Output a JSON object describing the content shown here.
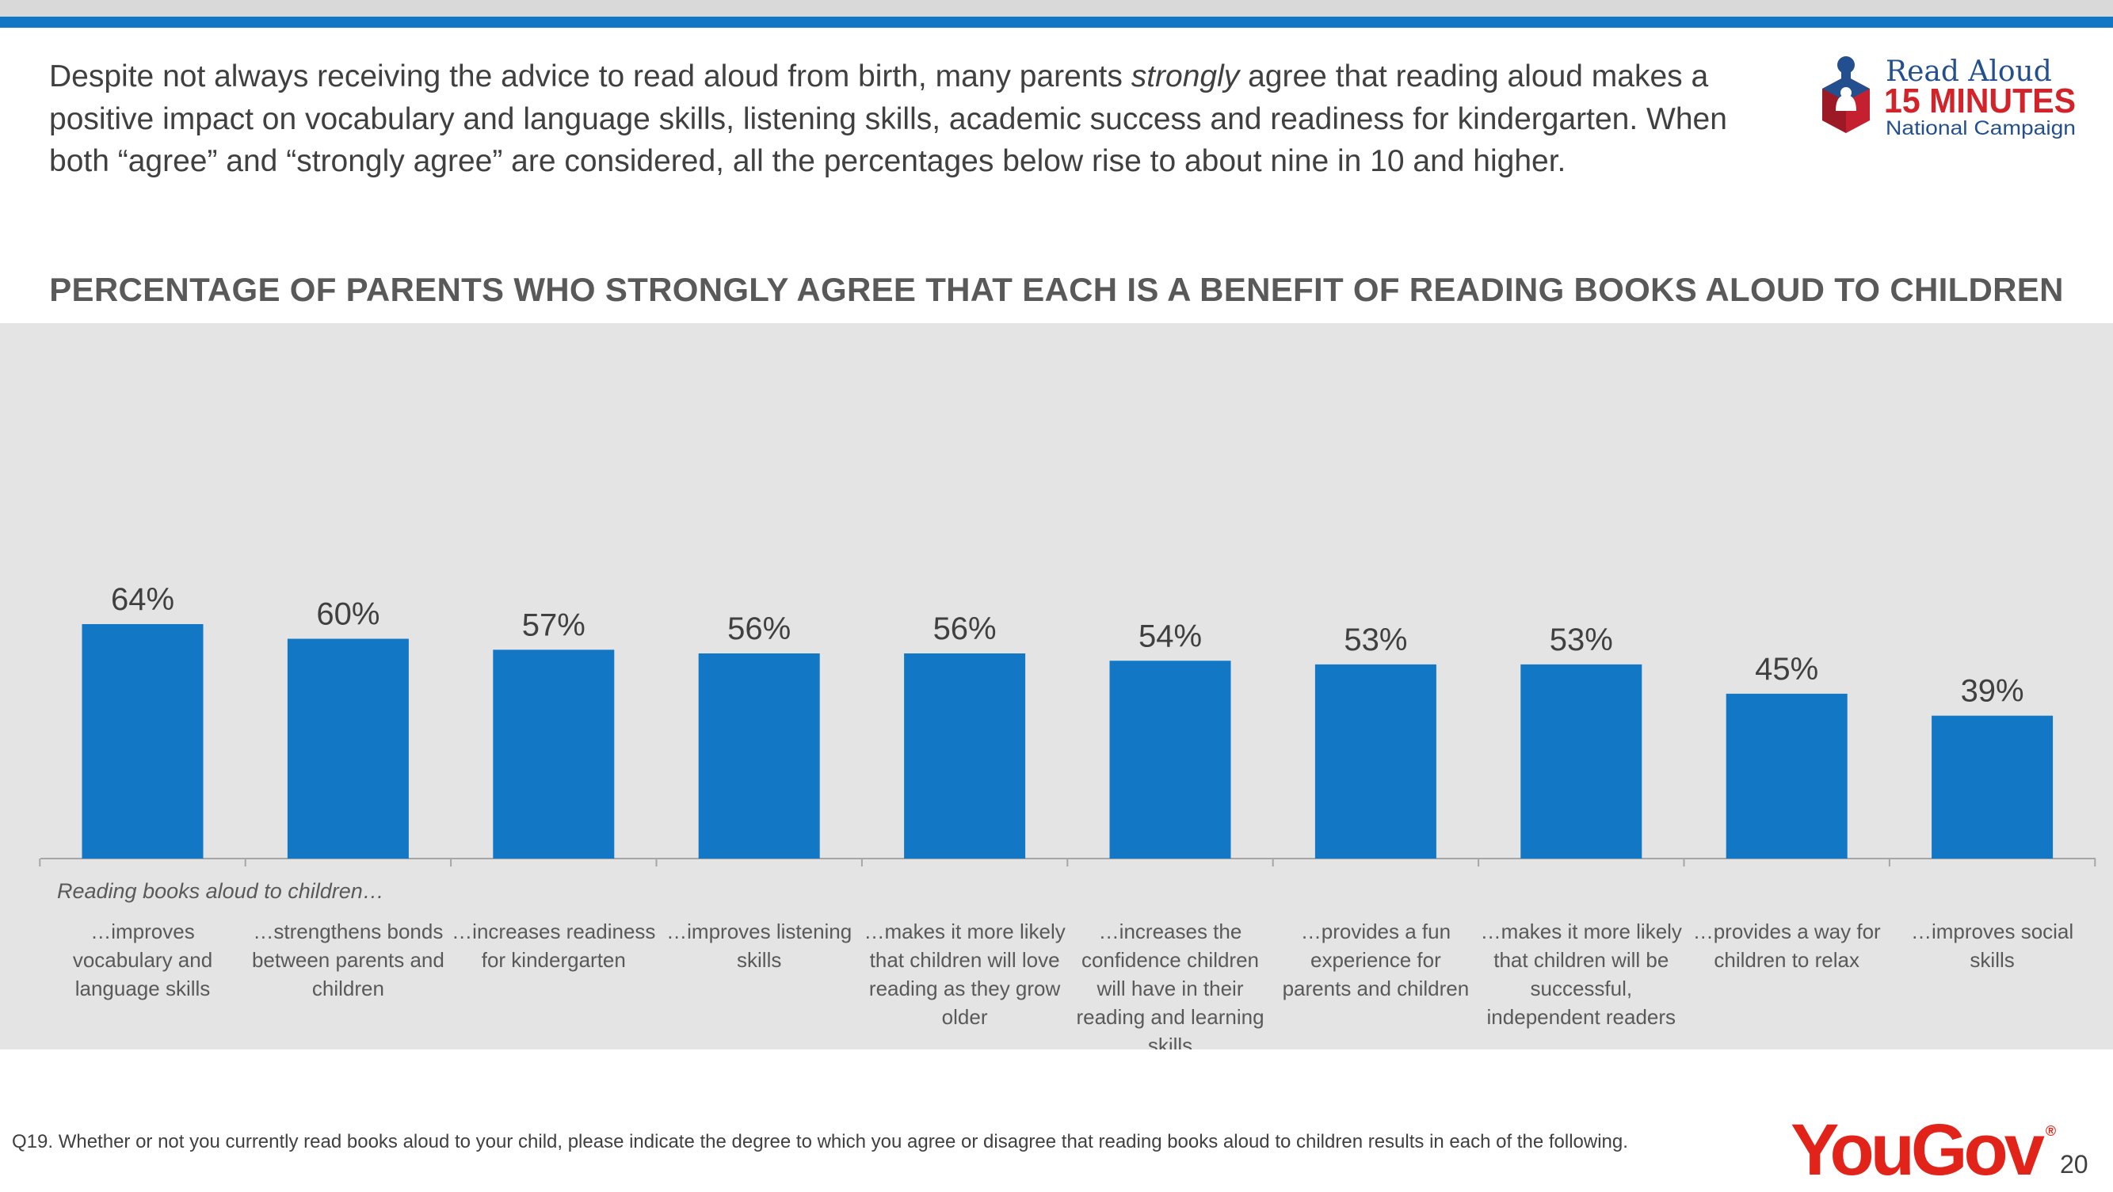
{
  "intro": {
    "part1": "Despite not always receiving the advice to read aloud from birth, many parents ",
    "emphasis": "strongly",
    "part2": " agree that reading aloud makes a positive impact on vocabulary and language skills, listening skills, academic success and readiness for kindergarten. When both “agree” and “strongly agree” are considered, all the percentages below rise to about nine in 10 and higher."
  },
  "logo": {
    "line1": "Read Aloud",
    "line2": "15 MINUTES",
    "line3": "National Campaign"
  },
  "chart_data": {
    "type": "bar",
    "title": "PERCENTAGE OF PARENTS WHO STRONGLY AGREE THAT EACH IS A BENEFIT OF READING BOOKS ALOUD TO CHILDREN",
    "xlabel": "Reading books aloud to children…",
    "ylabel": "",
    "ylim": [
      0,
      100
    ],
    "grid": false,
    "bar_color": "#1277c4",
    "categories": [
      [
        "…improves",
        "vocabulary and",
        "language skills"
      ],
      [
        "…strengthens bonds",
        "between parents and",
        "children"
      ],
      [
        "…increases readiness",
        "for kindergarten"
      ],
      [
        "…improves listening",
        "skills"
      ],
      [
        "…makes it more likely",
        "that children will love",
        "reading as they grow",
        "older"
      ],
      [
        "…increases the",
        "confidence children",
        "will have in their",
        "reading and learning",
        "skills"
      ],
      [
        "…provides a fun",
        "experience for",
        "parents and children"
      ],
      [
        "…makes it more likely",
        "that children will be",
        "successful,",
        "independent readers"
      ],
      [
        "…provides a way for",
        "children to relax"
      ],
      [
        "…improves social",
        "skills"
      ]
    ],
    "values": [
      64,
      60,
      57,
      56,
      56,
      54,
      53,
      53,
      45,
      39
    ],
    "value_labels": [
      "64%",
      "60%",
      "57%",
      "56%",
      "56%",
      "54%",
      "53%",
      "53%",
      "45%",
      "39%"
    ]
  },
  "footnote": "Q19. Whether or not you currently read books aloud to your child, please indicate the degree to which you agree or disagree that reading books aloud to children results in each of the following.",
  "brand": {
    "name": "YouGov",
    "registered": "®"
  },
  "page_number": "20"
}
